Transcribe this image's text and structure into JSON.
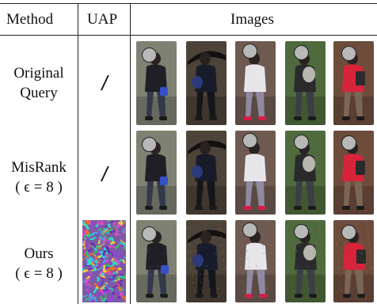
{
  "headers": {
    "method": "Method",
    "uap": "UAP",
    "images": "Images"
  },
  "rows": [
    {
      "label_line1": "Original",
      "label_line2": "Query",
      "uap": "/"
    },
    {
      "label_line1": "MisRank",
      "label_line2": "( ϵ = 8 )",
      "uap": "/"
    },
    {
      "label_line1": "Ours",
      "label_line2": "( ϵ = 8 )",
      "uap": ""
    }
  ],
  "images": [
    {
      "subject": "person in dark jacket carrying blue bag",
      "bg": "#7f8173",
      "top": "#1f1f25",
      "legs": "#33384a",
      "accent": "#3550c8"
    },
    {
      "subject": "person holding black umbrella",
      "bg": "#4d4338",
      "top": "#181c2a",
      "legs": "#15161b",
      "accent": "#2b3a7a"
    },
    {
      "subject": "person in white hoodie with red shoes",
      "bg": "#6f5a52",
      "top": "#e6e6ea",
      "legs": "#8f8aa0",
      "accent": "#d81c4a"
    },
    {
      "subject": "person with grey backpack on grass",
      "bg": "#4f6b3d",
      "top": "#2a2a2c",
      "legs": "#3b3f45",
      "accent": "#b9b6ae"
    },
    {
      "subject": "person in red jacket near brick wall",
      "bg": "#6d4c3c",
      "top": "#d7243a",
      "legs": "#7a6652",
      "accent": "#2b2b2b"
    }
  ]
}
